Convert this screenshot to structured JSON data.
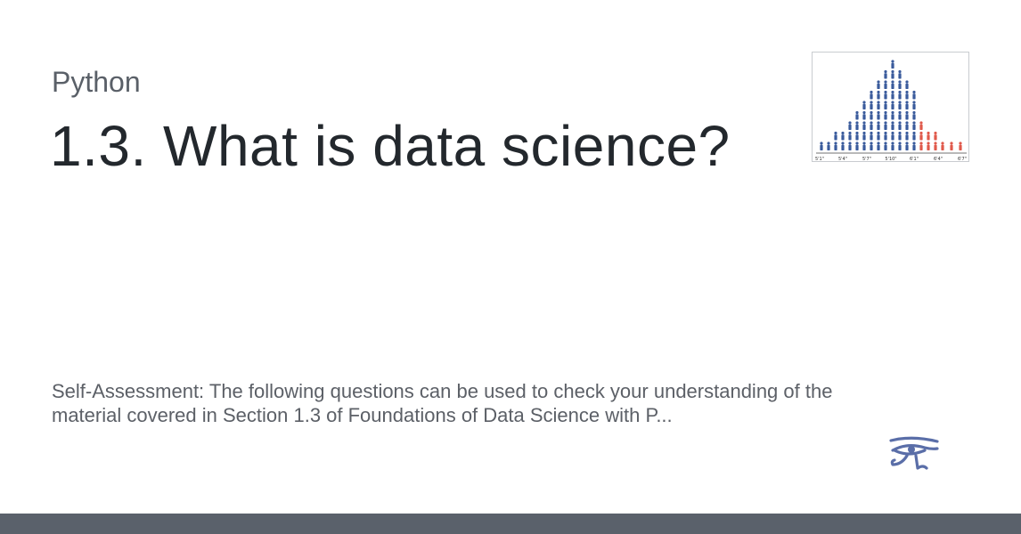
{
  "site": {
    "name": "Python"
  },
  "page": {
    "title": "1.3. What is data science?",
    "description": "Self-Assessment: The following questions can be used to check your understanding of the material covered in Section 1.3 of Foundations of Data Science with P..."
  },
  "thumbnail": {
    "tick_labels": [
      "5'1\"",
      "5'4\"",
      "5'7\"",
      "5'10\"",
      "6'1\"",
      "6'4\"",
      "6'7\""
    ],
    "colors": {
      "blue": "#3a5b9c",
      "red": "#e0594b"
    }
  },
  "logo": {
    "icon": "eye-of-horus-icon",
    "color": "#5a6ea8"
  },
  "footer": {
    "color": "#5a616b"
  }
}
